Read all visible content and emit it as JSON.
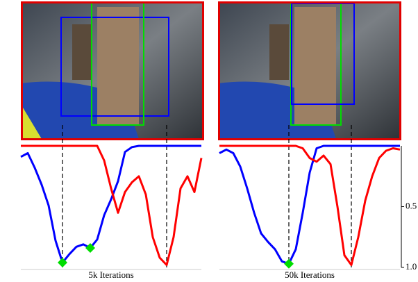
{
  "chart_data": [
    {
      "type": "line",
      "xlabel": "5k Iterations",
      "ylim": [
        0,
        1
      ],
      "y_inverted": true,
      "series": [
        {
          "color": "#0000ff",
          "values": [
            0.09,
            0.06,
            0.18,
            0.32,
            0.49,
            0.78,
            0.96,
            0.89,
            0.83,
            0.81,
            0.84,
            0.77,
            0.57,
            0.44,
            0.29,
            0.05,
            0.01,
            0,
            0,
            0,
            0,
            0,
            0,
            0,
            0,
            0,
            0
          ]
        },
        {
          "color": "#ff0000",
          "values": [
            0,
            0,
            0,
            0,
            0,
            0,
            0,
            0,
            0,
            0,
            0,
            0,
            0.12,
            0.35,
            0.55,
            0.38,
            0.3,
            0.25,
            0.4,
            0.75,
            0.92,
            0.98,
            0.75,
            0.35,
            0.25,
            0.38,
            0.1
          ]
        },
        {
          "color": "#00dd00",
          "marker": "diamond",
          "values": [
            null,
            null,
            null,
            null,
            null,
            null,
            0.96,
            null,
            null,
            null,
            0.84,
            null,
            null,
            null,
            null,
            null,
            null,
            null,
            null,
            null,
            null,
            null,
            null,
            null,
            null,
            null,
            null
          ]
        }
      ]
    },
    {
      "type": "line",
      "xlabel": "50k Iterations",
      "ylim": [
        0,
        1
      ],
      "y_inverted": true,
      "yticks": [
        0.5,
        {
          "value": 1,
          "label": "1.0"
        }
      ],
      "series": [
        {
          "color": "#0000ff",
          "values": [
            0.06,
            0.03,
            0.06,
            0.17,
            0.35,
            0.55,
            0.72,
            0.79,
            0.85,
            0.95,
            0.97,
            0.85,
            0.55,
            0.22,
            0.02,
            0,
            0,
            0,
            0,
            0,
            0,
            0,
            0,
            0,
            0,
            0,
            0
          ]
        },
        {
          "color": "#ff0000",
          "values": [
            0,
            0,
            0,
            0,
            0,
            0,
            0,
            0,
            0,
            0,
            0,
            0,
            0.02,
            0.1,
            0.13,
            0.08,
            0.15,
            0.5,
            0.9,
            0.98,
            0.75,
            0.45,
            0.25,
            0.1,
            0.04,
            0.02,
            0.03
          ]
        },
        {
          "color": "#00dd00",
          "marker": "diamond",
          "values": [
            null,
            null,
            null,
            null,
            null,
            null,
            null,
            null,
            null,
            null,
            0.97,
            null,
            null,
            null,
            null,
            null,
            null,
            null,
            null,
            null,
            null,
            null,
            null,
            null,
            null,
            null,
            null
          ]
        }
      ]
    }
  ]
}
